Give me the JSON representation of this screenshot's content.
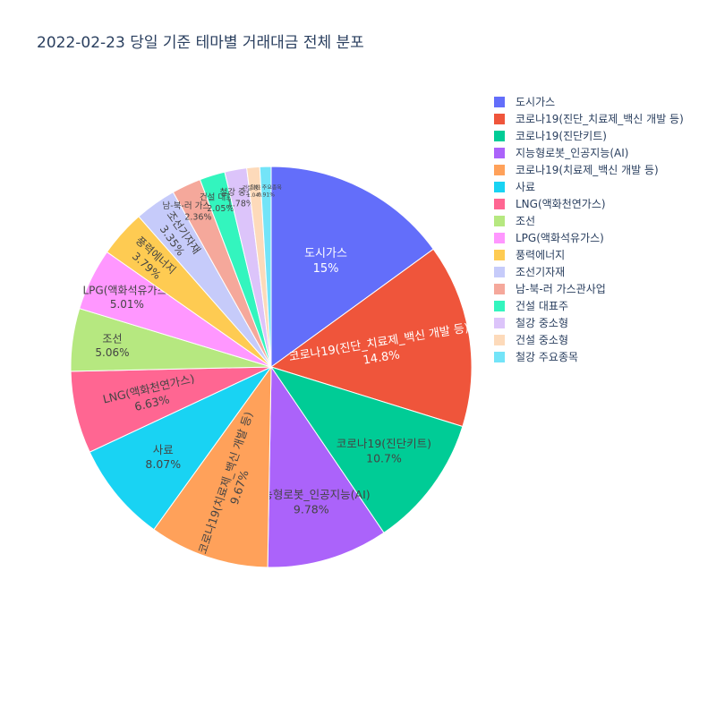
{
  "chart_data": {
    "type": "pie",
    "title": "2022-02-23 당일 기준 테마별 거래대금 전체 분포",
    "legend_position": "right",
    "slices": [
      {
        "label": "도시가스",
        "value": 15.0,
        "percent_label": "15%",
        "color": "#636efa"
      },
      {
        "label": "코로나19(진단_치료제_백신 개발 등)",
        "value": 14.8,
        "percent_label": "14.8%",
        "color": "#EF553B"
      },
      {
        "label": "코로나19(진단키트)",
        "value": 10.7,
        "percent_label": "10.7%",
        "color": "#00cc96"
      },
      {
        "label": "지능형로봇_인공지능(AI)",
        "value": 9.78,
        "percent_label": "9.78%",
        "color": "#ab63fa"
      },
      {
        "label": "코로나19(치료제_백신 개발 등)",
        "value": 9.67,
        "percent_label": "9.67%",
        "color": "#FFA15A"
      },
      {
        "label": "사료",
        "value": 8.07,
        "percent_label": "8.07%",
        "color": "#19d3f3"
      },
      {
        "label": "LNG(액화천연가스)",
        "value": 6.63,
        "percent_label": "6.63%",
        "color": "#FF6692"
      },
      {
        "label": "조선",
        "value": 5.06,
        "percent_label": "5.06%",
        "color": "#B6E880"
      },
      {
        "label": "LPG(액화석유가스)",
        "value": 5.01,
        "percent_label": "5.01%",
        "color": "#FF97FF"
      },
      {
        "label": "풍력에너지",
        "value": 3.79,
        "percent_label": "3.79%",
        "color": "#FECB52"
      },
      {
        "label": "조선기자재",
        "value": 3.35,
        "percent_label": "3.35%",
        "color": "#c6cbfa"
      },
      {
        "label": "남-북-러 가스관사업",
        "value": 2.36,
        "percent_label": "2.36%",
        "color": "#f5a89b"
      },
      {
        "label": "건설 대표주",
        "value": 2.05,
        "percent_label": "2.05%",
        "color": "#33f5be"
      },
      {
        "label": "철강 중소형",
        "value": 1.78,
        "percent_label": "1.78%",
        "color": "#dcc4fa"
      },
      {
        "label": "건설 중소형",
        "value": 1.04,
        "percent_label": "1.04%",
        "color": "#fddaba"
      },
      {
        "label": "철강 주요종목",
        "value": 0.91,
        "percent_label": "0.91%",
        "color": "#73e4f8"
      }
    ]
  }
}
